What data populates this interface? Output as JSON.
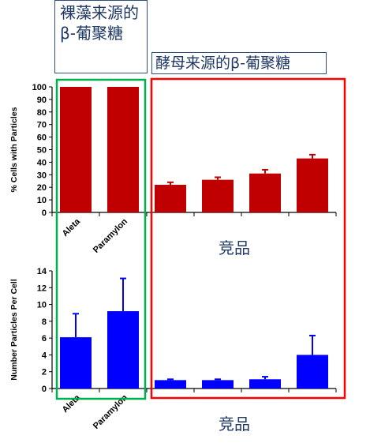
{
  "callouts": {
    "left": "裸藻来源的β-葡聚糖",
    "right": "酵母来源的β-葡聚糖"
  },
  "competitor_label_top": "竞品",
  "competitor_label_bottom": "竞品",
  "colors": {
    "top_bars": "#c00000",
    "bottom_bars": "#0000ff",
    "green_box": "#00b050",
    "red_box": "#ff0000"
  },
  "chart_data": [
    {
      "type": "bar",
      "ylabel": "% Cells with Particles",
      "ylim": [
        0,
        100
      ],
      "yticks": [
        0,
        10,
        20,
        30,
        40,
        50,
        60,
        70,
        80,
        90,
        100
      ],
      "categories": [
        "Aleta",
        "Paramylon",
        "",
        "",
        "",
        ""
      ],
      "values": [
        100,
        100,
        22,
        26,
        31,
        43
      ],
      "errors": [
        0,
        0,
        2,
        2,
        3,
        3
      ],
      "grid": false
    },
    {
      "type": "bar",
      "ylabel": "Number Particles Per Cell",
      "ylim": [
        0,
        14
      ],
      "yticks": [
        0,
        2,
        4,
        6,
        8,
        10,
        12,
        14
      ],
      "categories": [
        "Aleta",
        "Paramylon",
        "",
        "",
        "",
        ""
      ],
      "values": [
        6.1,
        9.2,
        1.0,
        1.0,
        1.1,
        4.0
      ],
      "errors": [
        2.8,
        3.9,
        0.1,
        0.1,
        0.3,
        2.3
      ],
      "grid": false
    }
  ]
}
